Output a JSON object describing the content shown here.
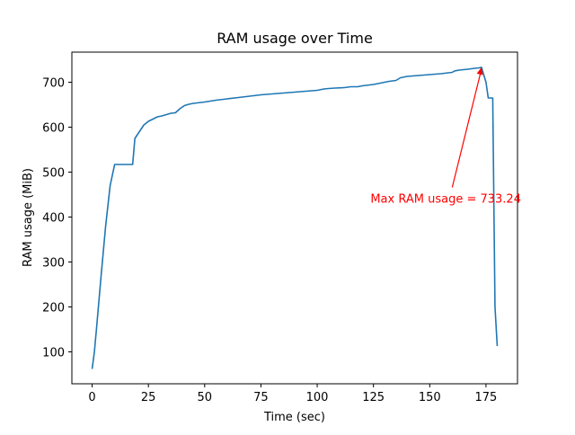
{
  "chart_data": {
    "type": "line",
    "title": "RAM usage over Time",
    "xlabel": "Time (sec)",
    "ylabel": "RAM usage (MiB)",
    "xlim": [
      -9,
      189
    ],
    "ylim": [
      29,
      767
    ],
    "xticks": [
      0,
      25,
      50,
      75,
      100,
      125,
      150,
      175
    ],
    "yticks": [
      100,
      200,
      300,
      400,
      500,
      600,
      700
    ],
    "grid": false,
    "line_color": "#1f77b4",
    "series": [
      {
        "x": [
          0,
          1,
          2,
          4,
          6,
          8,
          10,
          12,
          14,
          16,
          18,
          19,
          21,
          23,
          25,
          27,
          29,
          31,
          33,
          35,
          37,
          39,
          41,
          43,
          45,
          50,
          55,
          60,
          65,
          70,
          75,
          80,
          85,
          90,
          95,
          100,
          103,
          105,
          108,
          112,
          115,
          118,
          120,
          125,
          130,
          132,
          135,
          137,
          140,
          145,
          150,
          155,
          160,
          161,
          163,
          165,
          167,
          170,
          172,
          173,
          175,
          176,
          178,
          179,
          180
        ],
        "y": [
          62,
          100,
          155,
          270,
          380,
          470,
          517,
          517,
          517,
          517,
          517,
          575,
          590,
          605,
          613,
          618,
          623,
          625,
          628,
          631,
          632,
          641,
          648,
          651,
          653,
          656,
          660,
          663,
          666,
          669,
          672,
          674,
          676,
          678,
          680,
          682,
          685,
          686,
          687,
          688,
          690,
          690,
          692,
          695,
          700,
          702,
          704,
          710,
          713,
          715,
          717,
          719,
          722,
          725,
          727,
          728,
          729,
          731,
          732,
          733.24,
          700,
          665,
          665,
          200,
          113
        ]
      }
    ],
    "annotation": {
      "text": "Max RAM usage = 733.24",
      "color": "#ff0000",
      "point": [
        173,
        733.24
      ],
      "text_anchor_x": 160,
      "text_anchor_y": 466
    }
  }
}
